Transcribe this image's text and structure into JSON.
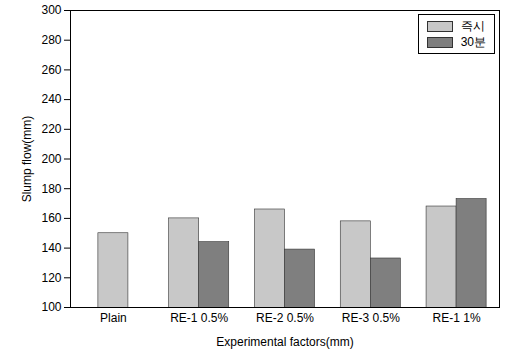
{
  "chart_data": {
    "type": "bar",
    "categories": [
      "Plain",
      "RE-1 0.5%",
      "RE-2 0.5%",
      "RE-3 0.5%",
      "RE-1 1%"
    ],
    "series": [
      {
        "name": "즉시",
        "color": "#c8c8c8",
        "values": [
          150,
          160,
          166,
          158,
          168
        ]
      },
      {
        "name": "30분",
        "color": "#7f7f7f",
        "values": [
          null,
          144,
          139,
          133,
          173
        ]
      }
    ],
    "x_label": "Experimental factors(mm)",
    "y_label": "Slump flow(mm)",
    "ylim": [
      100,
      300
    ],
    "yticks": [
      100,
      120,
      140,
      160,
      180,
      200,
      220,
      240,
      260,
      280,
      300
    ],
    "legend": "top-right",
    "grid": false
  }
}
